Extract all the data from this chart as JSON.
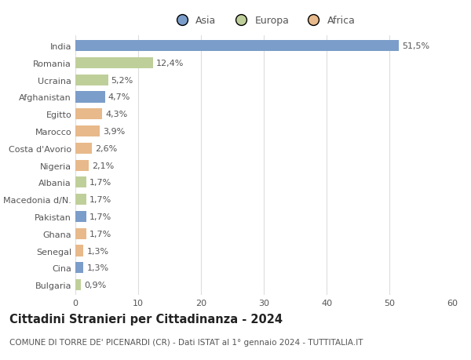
{
  "categories": [
    "India",
    "Romania",
    "Ucraina",
    "Afghanistan",
    "Egitto",
    "Marocco",
    "Costa d'Avorio",
    "Nigeria",
    "Albania",
    "Macedonia d/N.",
    "Pakistan",
    "Ghana",
    "Senegal",
    "Cina",
    "Bulgaria"
  ],
  "values": [
    51.5,
    12.4,
    5.2,
    4.7,
    4.3,
    3.9,
    2.6,
    2.1,
    1.7,
    1.7,
    1.7,
    1.7,
    1.3,
    1.3,
    0.9
  ],
  "labels": [
    "51,5%",
    "12,4%",
    "5,2%",
    "4,7%",
    "4,3%",
    "3,9%",
    "2,6%",
    "2,1%",
    "1,7%",
    "1,7%",
    "1,7%",
    "1,7%",
    "1,3%",
    "1,3%",
    "0,9%"
  ],
  "colors": [
    "#7b9dc9",
    "#bfcf9a",
    "#bfcf9a",
    "#7b9dc9",
    "#e8b98a",
    "#e8b98a",
    "#e8b98a",
    "#e8b98a",
    "#bfcf9a",
    "#bfcf9a",
    "#7b9dc9",
    "#e8b98a",
    "#e8b98a",
    "#7b9dc9",
    "#bfcf9a"
  ],
  "legend_labels": [
    "Asia",
    "Europa",
    "Africa"
  ],
  "legend_colors": [
    "#7b9dc9",
    "#bfcf9a",
    "#e8b98a"
  ],
  "title": "Cittadini Stranieri per Cittadinanza - 2024",
  "subtitle": "COMUNE DI TORRE DE' PICENARDI (CR) - Dati ISTAT al 1° gennaio 2024 - TUTTITALIA.IT",
  "xlim": [
    0,
    60
  ],
  "xticks": [
    0,
    10,
    20,
    30,
    40,
    50,
    60
  ],
  "background_color": "#ffffff",
  "bar_height": 0.65,
  "grid_color": "#dddddd",
  "text_color": "#555555",
  "label_fontsize": 8,
  "tick_fontsize": 8,
  "title_fontsize": 10.5,
  "subtitle_fontsize": 7.5
}
